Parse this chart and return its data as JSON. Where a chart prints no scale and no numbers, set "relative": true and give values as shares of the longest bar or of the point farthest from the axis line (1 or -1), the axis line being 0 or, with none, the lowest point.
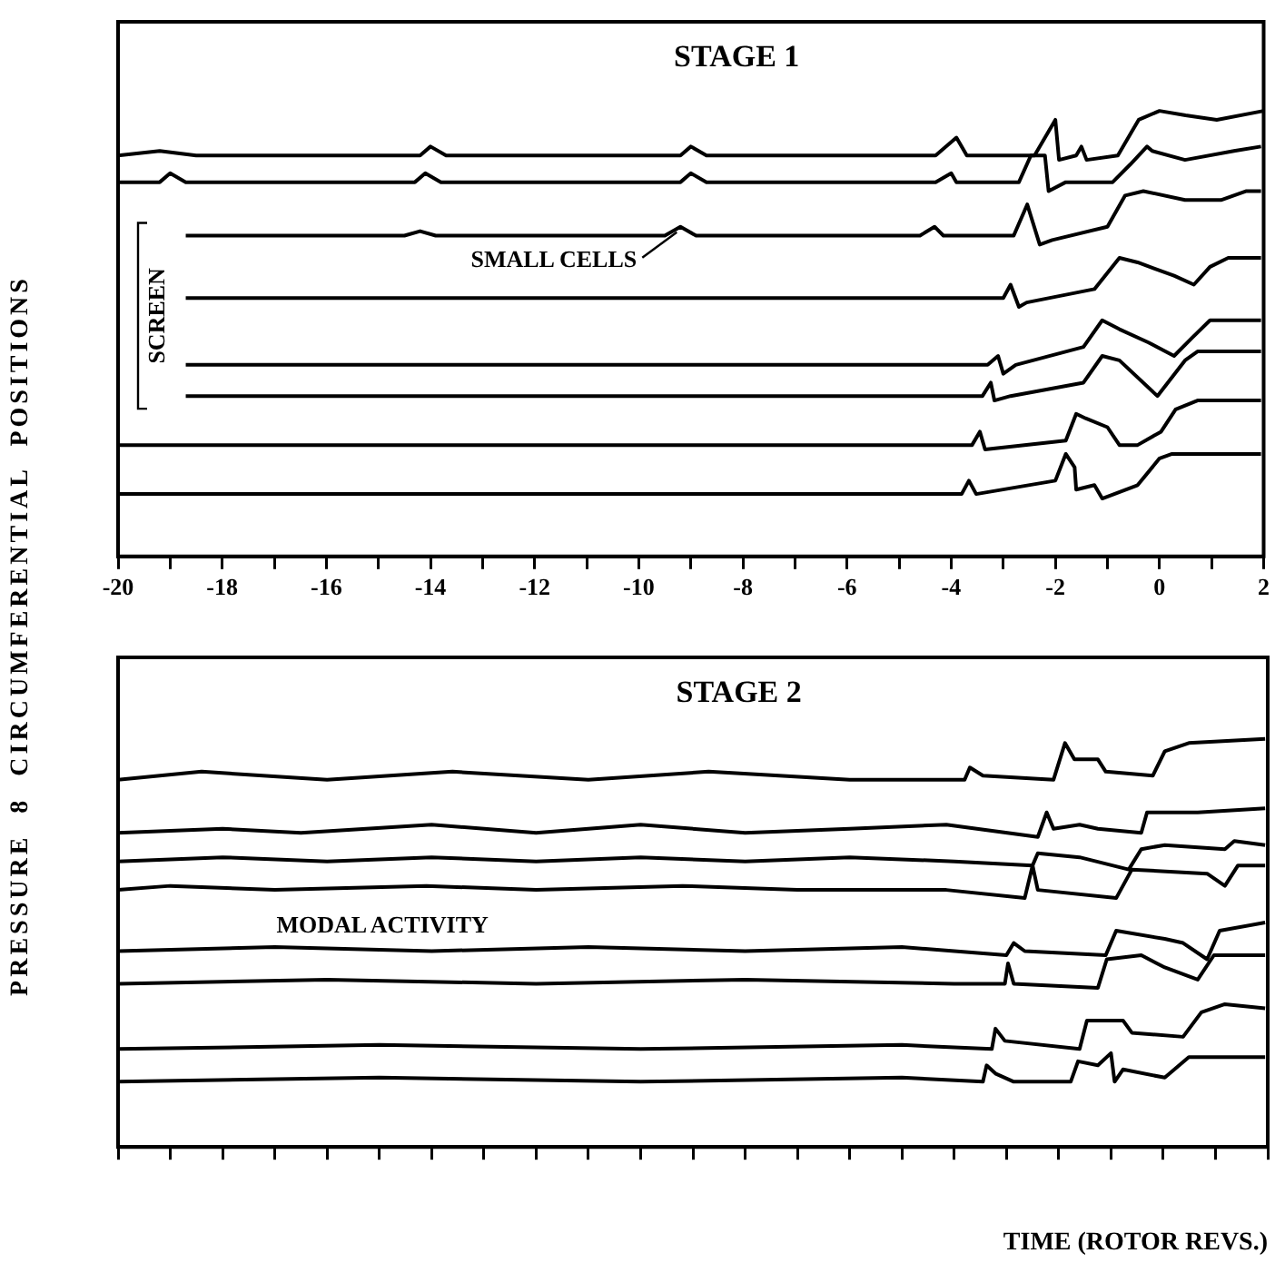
{
  "chart_data": [
    {
      "type": "line",
      "title": "STAGE 1",
      "ylabel": "PRESSURE 8 CIRCUMFERENTIAL POSITIONS",
      "relative": true,
      "marker": "none",
      "tick_labels": "x",
      "xlim": [
        -20,
        2
      ],
      "xticks": [
        -20,
        {
          "value": -19,
          "label": null
        },
        -18,
        {
          "value": -17,
          "label": null
        },
        -16,
        {
          "value": -15,
          "label": null
        },
        -14,
        {
          "value": -13,
          "label": null
        },
        -12,
        {
          "value": -11,
          "label": null
        },
        -10,
        {
          "value": -9,
          "label": null
        },
        -8,
        {
          "value": -7,
          "label": null
        },
        -6,
        {
          "value": -5,
          "label": null
        },
        -4,
        {
          "value": -3,
          "label": null
        },
        -2,
        {
          "value": -1,
          "label": null
        },
        0,
        {
          "value": 1,
          "label": null
        },
        2
      ],
      "annotations": [
        "SCREEN",
        {
          "text": "SMALL CELLS",
          "x": -9.2,
          "y": 0.74
        }
      ],
      "series": [
        {
          "color": "#000000",
          "x": [
            -20,
            -19.2,
            -18.5,
            -14.2,
            -14,
            -13.7,
            -9.2,
            -9,
            -8.7,
            -4.3,
            -3.9,
            -3.7,
            -2.4,
            -2.0,
            -1.93,
            -1.6,
            -1.5,
            -1.4,
            -0.8,
            -0.5,
            -0.4,
            0,
            0.5,
            1.1,
            2
          ],
          "values": [
            0.9,
            0.91,
            0.9,
            0.9,
            0.92,
            0.9,
            0.9,
            0.92,
            0.9,
            0.9,
            0.94,
            0.9,
            0.9,
            0.98,
            0.89,
            0.9,
            0.92,
            0.89,
            0.9,
            0.96,
            0.98,
            1.0,
            0.99,
            0.98,
            1.0
          ]
        },
        {
          "color": "#000000",
          "x": [
            -20,
            -19.2,
            -19,
            -18.7,
            -14.3,
            -14.1,
            -13.8,
            -9.2,
            -9,
            -8.7,
            -4.3,
            -4.0,
            -3.9,
            -2.7,
            -2.47,
            -2.2,
            -2.13,
            -1.8,
            -0.9,
            -0.56,
            -0.24,
            -0.14,
            0.49,
            1.43,
            1.95
          ],
          "values": [
            0.84,
            0.84,
            0.86,
            0.84,
            0.84,
            0.86,
            0.84,
            0.84,
            0.86,
            0.84,
            0.84,
            0.86,
            0.84,
            0.84,
            0.9,
            0.9,
            0.82,
            0.84,
            0.84,
            0.88,
            0.92,
            0.91,
            0.89,
            0.91,
            0.92
          ]
        },
        {
          "color": "#000000",
          "x": [
            -18.7,
            -14.5,
            -14.2,
            -13.9,
            -9.5,
            -9.2,
            -8.9,
            -4.6,
            -4.32,
            -4.15,
            -2.8,
            -2.54,
            -2.3,
            -2.06,
            -1.0,
            -0.66,
            -0.31,
            0.49,
            1.18,
            1.67,
            1.95
          ],
          "values": [
            0.72,
            0.72,
            0.73,
            0.72,
            0.72,
            0.74,
            0.72,
            0.72,
            0.74,
            0.72,
            0.72,
            0.79,
            0.7,
            0.71,
            0.74,
            0.81,
            0.82,
            0.8,
            0.8,
            0.82,
            0.82
          ]
        },
        {
          "color": "#000000",
          "x": [
            -18.7,
            -3.0,
            -2.86,
            -2.7,
            -2.55,
            -1.25,
            -0.77,
            -0.42,
            0.28,
            0.66,
            0.97,
            1.32,
            1.95
          ],
          "values": [
            0.58,
            0.58,
            0.61,
            0.56,
            0.57,
            0.6,
            0.67,
            0.66,
            0.63,
            0.61,
            0.65,
            0.67,
            0.67
          ]
        },
        {
          "color": "#000000",
          "x": [
            -18.7,
            -3.3,
            -3.1,
            -3.0,
            -2.76,
            -1.46,
            -1.1,
            -0.77,
            -0.21,
            0.28,
            0.62,
            0.97,
            1.95
          ],
          "values": [
            0.43,
            0.43,
            0.45,
            0.41,
            0.43,
            0.47,
            0.53,
            0.51,
            0.48,
            0.45,
            0.49,
            0.53,
            0.53
          ]
        },
        {
          "color": "#000000",
          "x": [
            -18.7,
            -3.4,
            -3.24,
            -3.17,
            -2.86,
            -1.46,
            -1.1,
            -0.77,
            -0.04,
            0.49,
            0.73,
            1.95
          ],
          "values": [
            0.36,
            0.36,
            0.39,
            0.35,
            0.36,
            0.39,
            0.45,
            0.44,
            0.36,
            0.44,
            0.46,
            0.46
          ]
        },
        {
          "color": "#000000",
          "x": [
            -20,
            -3.6,
            -3.45,
            -3.35,
            -1.8,
            -1.6,
            -1.42,
            -1.0,
            -0.77,
            -0.42,
            0.03,
            0.31,
            0.73,
            1.95
          ],
          "values": [
            0.25,
            0.25,
            0.28,
            0.24,
            0.26,
            0.32,
            0.31,
            0.29,
            0.25,
            0.25,
            0.28,
            0.33,
            0.35,
            0.35
          ]
        },
        {
          "color": "#000000",
          "x": [
            -20,
            -3.8,
            -3.66,
            -3.52,
            -2.0,
            -1.8,
            -1.63,
            -1.6,
            -1.25,
            -1.1,
            -0.42,
            0.0,
            0.24,
            1.95
          ],
          "values": [
            0.14,
            0.14,
            0.17,
            0.14,
            0.17,
            0.23,
            0.2,
            0.15,
            0.16,
            0.13,
            0.16,
            0.22,
            0.23,
            0.23
          ]
        }
      ]
    },
    {
      "type": "line",
      "title": "STAGE 2",
      "xlabel": "TIME (ROTOR REVS.)",
      "relative": true,
      "marker": "none",
      "tick_labels": false,
      "xlim": [
        -20,
        2
      ],
      "xticks": [
        {
          "value": -20,
          "label": null
        },
        {
          "value": -19,
          "label": null
        },
        {
          "value": -18,
          "label": null
        },
        {
          "value": -17,
          "label": null
        },
        {
          "value": -16,
          "label": null
        },
        {
          "value": -15,
          "label": null
        },
        {
          "value": -14,
          "label": null
        },
        {
          "value": -13,
          "label": null
        },
        {
          "value": -12,
          "label": null
        },
        {
          "value": -11,
          "label": null
        },
        {
          "value": -10,
          "label": null
        },
        {
          "value": -9,
          "label": null
        },
        {
          "value": -8,
          "label": null
        },
        {
          "value": -7,
          "label": null
        },
        {
          "value": -6,
          "label": null
        },
        {
          "value": -5,
          "label": null
        },
        {
          "value": -4,
          "label": null
        },
        {
          "value": -3,
          "label": null
        },
        {
          "value": -2,
          "label": null
        },
        {
          "value": -1,
          "label": null
        },
        {
          "value": 0,
          "label": null
        },
        {
          "value": 1,
          "label": null
        },
        {
          "value": 2,
          "label": null
        }
      ],
      "annotations": [
        "MODAL ACTIVITY"
      ],
      "series": [
        {
          "color": "#000000",
          "x": [
            -20,
            -18.4,
            -16,
            -13.6,
            -11,
            -8.7,
            -6,
            -3.8,
            -3.7,
            -3.45,
            -2.1,
            -1.88,
            -1.7,
            -1.25,
            -1.1,
            -0.2,
            0.03,
            0.49,
            1.95
          ],
          "values": [
            0.9,
            0.92,
            0.9,
            0.92,
            0.9,
            0.92,
            0.9,
            0.9,
            0.93,
            0.91,
            0.9,
            0.99,
            0.95,
            0.95,
            0.92,
            0.91,
            0.97,
            0.99,
            1.0
          ]
        },
        {
          "color": "#000000",
          "x": [
            -20,
            -18,
            -16.5,
            -14,
            -12,
            -10,
            -8,
            -6,
            -4.15,
            -2.4,
            -2.23,
            -2.1,
            -1.6,
            -1.25,
            -0.42,
            -0.31,
            0.66,
            1.95
          ],
          "values": [
            0.77,
            0.78,
            0.77,
            0.79,
            0.77,
            0.79,
            0.77,
            0.78,
            0.79,
            0.76,
            0.82,
            0.78,
            0.79,
            0.78,
            0.77,
            0.82,
            0.82,
            0.83
          ]
        },
        {
          "color": "#000000",
          "x": [
            -20,
            -18,
            -16,
            -14,
            -12,
            -10,
            -8,
            -6,
            -4,
            -2.5,
            -2.4,
            -1.6,
            -0.66,
            -0.42,
            0.03,
            1.18,
            1.36,
            1.95
          ],
          "values": [
            0.7,
            0.71,
            0.7,
            0.71,
            0.7,
            0.71,
            0.7,
            0.71,
            0.7,
            0.69,
            0.72,
            0.71,
            0.68,
            0.73,
            0.74,
            0.73,
            0.75,
            0.74
          ]
        },
        {
          "color": "#000000",
          "x": [
            -20,
            -19,
            -17,
            -14.1,
            -12,
            -9.2,
            -7,
            -4.15,
            -2.65,
            -2.5,
            -2.4,
            -0.9,
            -0.6,
            0.84,
            1.18,
            1.43,
            1.95
          ],
          "values": [
            0.63,
            0.64,
            0.63,
            0.64,
            0.63,
            0.64,
            0.63,
            0.63,
            0.61,
            0.69,
            0.63,
            0.61,
            0.68,
            0.67,
            0.64,
            0.69,
            0.69
          ]
        },
        {
          "color": "#000000",
          "x": [
            -20,
            -17,
            -14,
            -11,
            -8,
            -5,
            -3.0,
            -2.86,
            -2.65,
            -1.1,
            -0.9,
            0.03,
            0.38,
            0.84,
            1.08,
            1.95
          ],
          "values": [
            0.48,
            0.49,
            0.48,
            0.49,
            0.48,
            0.49,
            0.47,
            0.5,
            0.48,
            0.47,
            0.53,
            0.51,
            0.5,
            0.46,
            0.53,
            0.55
          ]
        },
        {
          "color": "#000000",
          "x": [
            -20,
            -16,
            -12,
            -8,
            -4,
            -3.03,
            -2.97,
            -2.86,
            -1.25,
            -1.08,
            -0.42,
            0.03,
            0.66,
            0.97,
            1.95
          ],
          "values": [
            0.4,
            0.41,
            0.4,
            0.41,
            0.4,
            0.4,
            0.45,
            0.4,
            0.39,
            0.46,
            0.47,
            0.44,
            0.41,
            0.47,
            0.47
          ]
        },
        {
          "color": "#000000",
          "x": [
            -20,
            -15,
            -10,
            -5,
            -3.28,
            -3.21,
            -3.03,
            -1.6,
            -1.46,
            -0.77,
            -0.6,
            0.38,
            0.73,
            1.18,
            1.95
          ],
          "values": [
            0.24,
            0.25,
            0.24,
            0.25,
            0.24,
            0.29,
            0.26,
            0.24,
            0.31,
            0.31,
            0.28,
            0.27,
            0.33,
            0.35,
            0.34
          ]
        },
        {
          "color": "#000000",
          "x": [
            -20,
            -15,
            -10,
            -5,
            -3.45,
            -3.38,
            -3.21,
            -2.86,
            -1.77,
            -1.63,
            -1.25,
            -1.0,
            -0.93,
            -0.77,
            0.03,
            0.49,
            1.95
          ],
          "values": [
            0.16,
            0.17,
            0.16,
            0.17,
            0.16,
            0.2,
            0.18,
            0.16,
            0.16,
            0.21,
            0.2,
            0.23,
            0.16,
            0.19,
            0.17,
            0.22,
            0.22
          ]
        }
      ]
    }
  ]
}
